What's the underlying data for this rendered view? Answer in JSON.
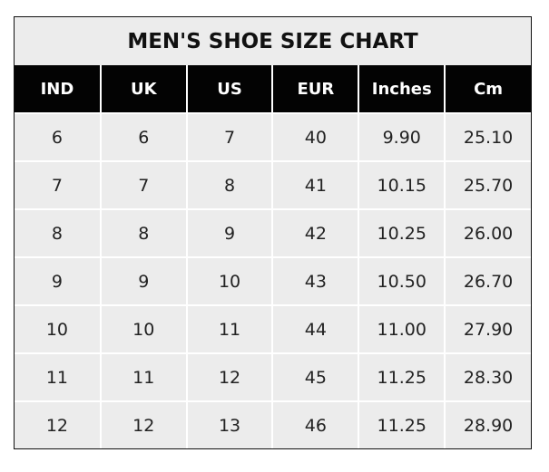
{
  "title": "MEN'S SHOE SIZE CHART",
  "headers": [
    "IND",
    "UK",
    "US",
    "EUR",
    "Inches",
    "Cm"
  ],
  "rows": [
    [
      "6",
      "6",
      "7",
      "40",
      "9.90",
      "25.10"
    ],
    [
      "7",
      "7",
      "8",
      "41",
      "10.15",
      "25.70"
    ],
    [
      "8",
      "8",
      "9",
      "42",
      "10.25",
      "26.00"
    ],
    [
      "9",
      "9",
      "10",
      "43",
      "10.50",
      "26.70"
    ],
    [
      "10",
      "10",
      "11",
      "44",
      "11.00",
      "27.90"
    ],
    [
      "11",
      "11",
      "12",
      "45",
      "11.25",
      "28.30"
    ],
    [
      "12",
      "12",
      "13",
      "46",
      "11.25",
      "28.90"
    ]
  ],
  "colors": {
    "header_bg": "#030303",
    "cell_bg": "#ececec",
    "grid": "#ffffff"
  }
}
